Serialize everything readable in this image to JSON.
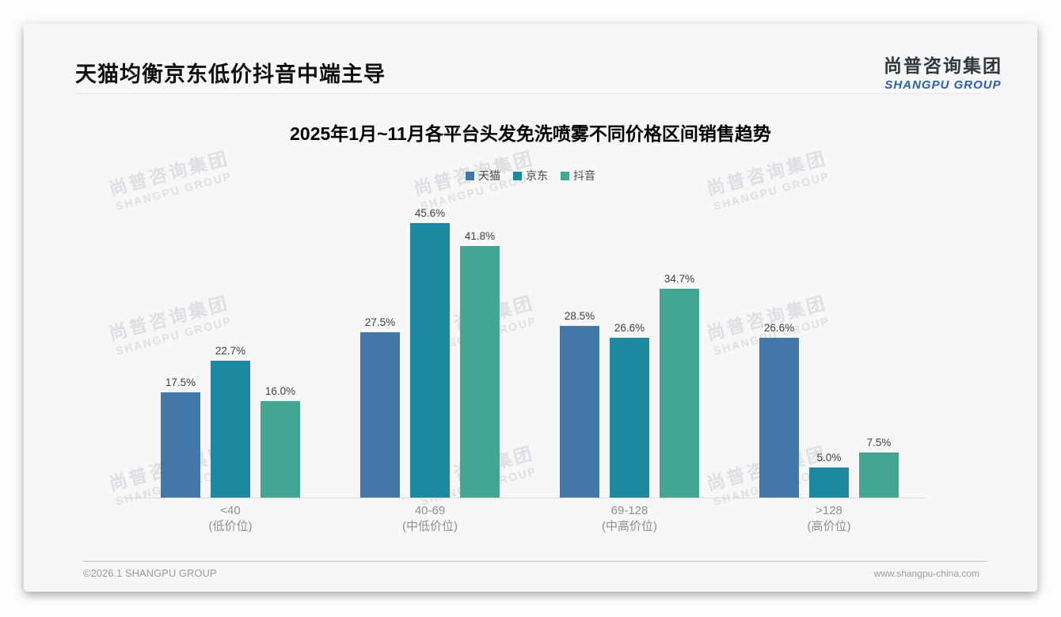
{
  "page": {
    "title": "天猫均衡京东低价抖音中端主导",
    "logo": {
      "cn": "尚普咨询集团",
      "en": "SHANGPU GROUP"
    },
    "watermark": {
      "line1": "尚普咨询集团",
      "line2": "SHANGPU GROUP"
    },
    "footer": {
      "left": "©2026.1 SHANGPU GROUP",
      "right": "www.shangpu-china.com"
    }
  },
  "chart_data": {
    "type": "bar",
    "title": "2025年1月~11月各平台头发免洗喷雾不同价格区间销售趋势",
    "categories": [
      {
        "range": "<40",
        "tier": "(低价位)"
      },
      {
        "range": "40-69",
        "tier": "(中低价位)"
      },
      {
        "range": "69-128",
        "tier": "(中高价位)"
      },
      {
        "range": ">128",
        "tier": "(高价位)"
      }
    ],
    "series": [
      {
        "name": "天猫",
        "color": "#4377A9",
        "values": [
          17.5,
          27.5,
          28.5,
          26.6
        ]
      },
      {
        "name": "京东",
        "color": "#1C89A0",
        "values": [
          22.7,
          45.6,
          26.6,
          5.0
        ]
      },
      {
        "name": "抖音",
        "color": "#43A693",
        "values": [
          16.0,
          41.8,
          34.7,
          7.5
        ]
      }
    ],
    "value_suffix": "%",
    "ylabel": "",
    "xlabel": "",
    "ylim": [
      0,
      50
    ],
    "grid": false,
    "legend_position": "top"
  }
}
